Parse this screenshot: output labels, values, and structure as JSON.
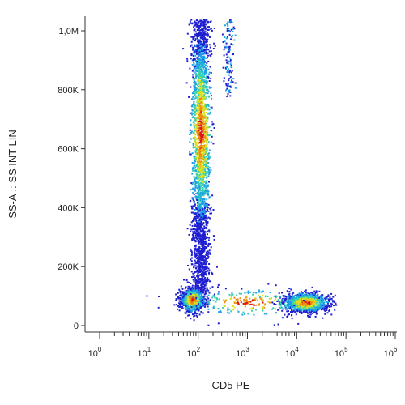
{
  "chart_data": {
    "type": "scatter",
    "subtype": "flow-cytometry-density-dot-plot",
    "xlabel": "CD5 PE",
    "ylabel": "SS-A :: SS INT LIN",
    "x_scale": "log",
    "x_range": [
      1,
      1000000
    ],
    "x_tick_values": [
      1,
      10,
      100,
      1000,
      10000,
      100000,
      1000000
    ],
    "x_tick_labels": [
      {
        "base": "10",
        "exp": "0"
      },
      {
        "base": "10",
        "exp": "1"
      },
      {
        "base": "10",
        "exp": "2"
      },
      {
        "base": "10",
        "exp": "3"
      },
      {
        "base": "10",
        "exp": "4"
      },
      {
        "base": "10",
        "exp": "5"
      },
      {
        "base": "10",
        "exp": "6"
      }
    ],
    "y_scale": "linear",
    "y_range": [
      -20000,
      1050000
    ],
    "y_ticks": [
      {
        "value": 0,
        "label": "0"
      },
      {
        "value": 200000,
        "label": "200K"
      },
      {
        "value": 400000,
        "label": "400K"
      },
      {
        "value": 600000,
        "label": "600K"
      },
      {
        "value": 800000,
        "label": "800K"
      },
      {
        "value": 1000000,
        "label": "1,0M"
      }
    ],
    "grid": false,
    "legend": "none",
    "color_scale": [
      "#1f1fd0",
      "#1aa0e6",
      "#38d0b0",
      "#d8e020",
      "#f08a10",
      "#d81818"
    ],
    "populations": [
      {
        "x_center": 110,
        "x_spread_log": 0.09,
        "y_from": 120000,
        "y_to": 1040000,
        "y_peak": 660000,
        "count": 2600
      },
      {
        "x_center": 75,
        "x_spread_log": 0.12,
        "y_center": 90000,
        "y_spread": 20000,
        "count": 900
      },
      {
        "x_center": 15000,
        "x_spread_log": 0.22,
        "y_center": 80000,
        "y_spread": 16000,
        "count": 1100
      },
      {
        "x_center": 400,
        "x_spread_log": 0.05,
        "y_from": 780000,
        "y_to": 1040000,
        "count": 120
      },
      {
        "x_center": 1000,
        "x_spread_log": 0.6,
        "y_center": 80000,
        "y_spread": 25000,
        "count": 250
      }
    ]
  }
}
